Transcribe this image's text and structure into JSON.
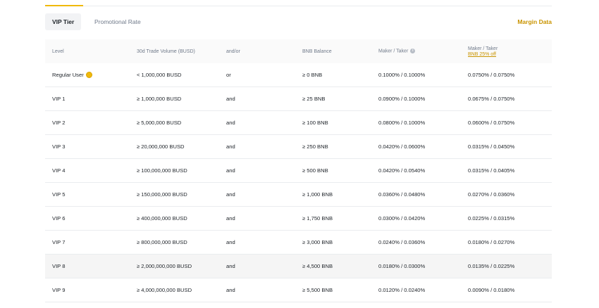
{
  "tabs": [
    {
      "label": "VIP Tier",
      "active": true
    },
    {
      "label": "Promotional Rate",
      "active": false
    }
  ],
  "margin_link": "Margin Data",
  "accent_color": "#f0b90b",
  "headers": {
    "level": "Level",
    "volume": "30d Trade Volume (BUSD)",
    "andor": "and/or",
    "bnb": "BNB Balance",
    "fee": "Maker / Taker",
    "fee_icon": "info-icon",
    "fee_bnb": "Maker / Taker",
    "fee_bnb_sub": "BNB 25% off"
  },
  "rows": [
    {
      "level": "Regular User",
      "icon": "coin-icon",
      "volume": "< 1,000,000 BUSD",
      "andor": "or",
      "bnb": "≥ 0 BNB",
      "fee": "0.1000% / 0.1000%",
      "fee_bnb": "0.0750% / 0.0750%"
    },
    {
      "level": "VIP 1",
      "volume": "≥ 1,000,000 BUSD",
      "andor": "and",
      "bnb": "≥ 25 BNB",
      "fee": "0.0900% / 0.1000%",
      "fee_bnb": "0.0675% / 0.0750%"
    },
    {
      "level": "VIP 2",
      "volume": "≥ 5,000,000 BUSD",
      "andor": "and",
      "bnb": "≥ 100 BNB",
      "fee": "0.0800% / 0.1000%",
      "fee_bnb": "0.0600% / 0.0750%"
    },
    {
      "level": "VIP 3",
      "volume": "≥ 20,000,000 BUSD",
      "andor": "and",
      "bnb": "≥ 250 BNB",
      "fee": "0.0420% / 0.0600%",
      "fee_bnb": "0.0315% / 0.0450%"
    },
    {
      "level": "VIP 4",
      "volume": "≥ 100,000,000 BUSD",
      "andor": "and",
      "bnb": "≥ 500 BNB",
      "fee": "0.0420% / 0.0540%",
      "fee_bnb": "0.0315% / 0.0405%"
    },
    {
      "level": "VIP 5",
      "volume": "≥ 150,000,000 BUSD",
      "andor": "and",
      "bnb": "≥ 1,000 BNB",
      "fee": "0.0360% / 0.0480%",
      "fee_bnb": "0.0270% / 0.0360%"
    },
    {
      "level": "VIP 6",
      "volume": "≥ 400,000,000 BUSD",
      "andor": "and",
      "bnb": "≥ 1,750 BNB",
      "fee": "0.0300% / 0.0420%",
      "fee_bnb": "0.0225% / 0.0315%"
    },
    {
      "level": "VIP 7",
      "volume": "≥ 800,000,000 BUSD",
      "andor": "and",
      "bnb": "≥ 3,000 BNB",
      "fee": "0.0240% / 0.0360%",
      "fee_bnb": "0.0180% / 0.0270%"
    },
    {
      "level": "VIP 8",
      "volume": "≥ 2,000,000,000 BUSD",
      "andor": "and",
      "bnb": "≥ 4,500 BNB",
      "fee": "0.0180% / 0.0300%",
      "fee_bnb": "0.0135% / 0.0225%"
    },
    {
      "level": "VIP 9",
      "volume": "≥ 4,000,000,000 BUSD",
      "andor": "and",
      "bnb": "≥ 5,500 BNB",
      "fee": "0.0120% / 0.0240%",
      "fee_bnb": "0.0090% / 0.0180%"
    }
  ]
}
